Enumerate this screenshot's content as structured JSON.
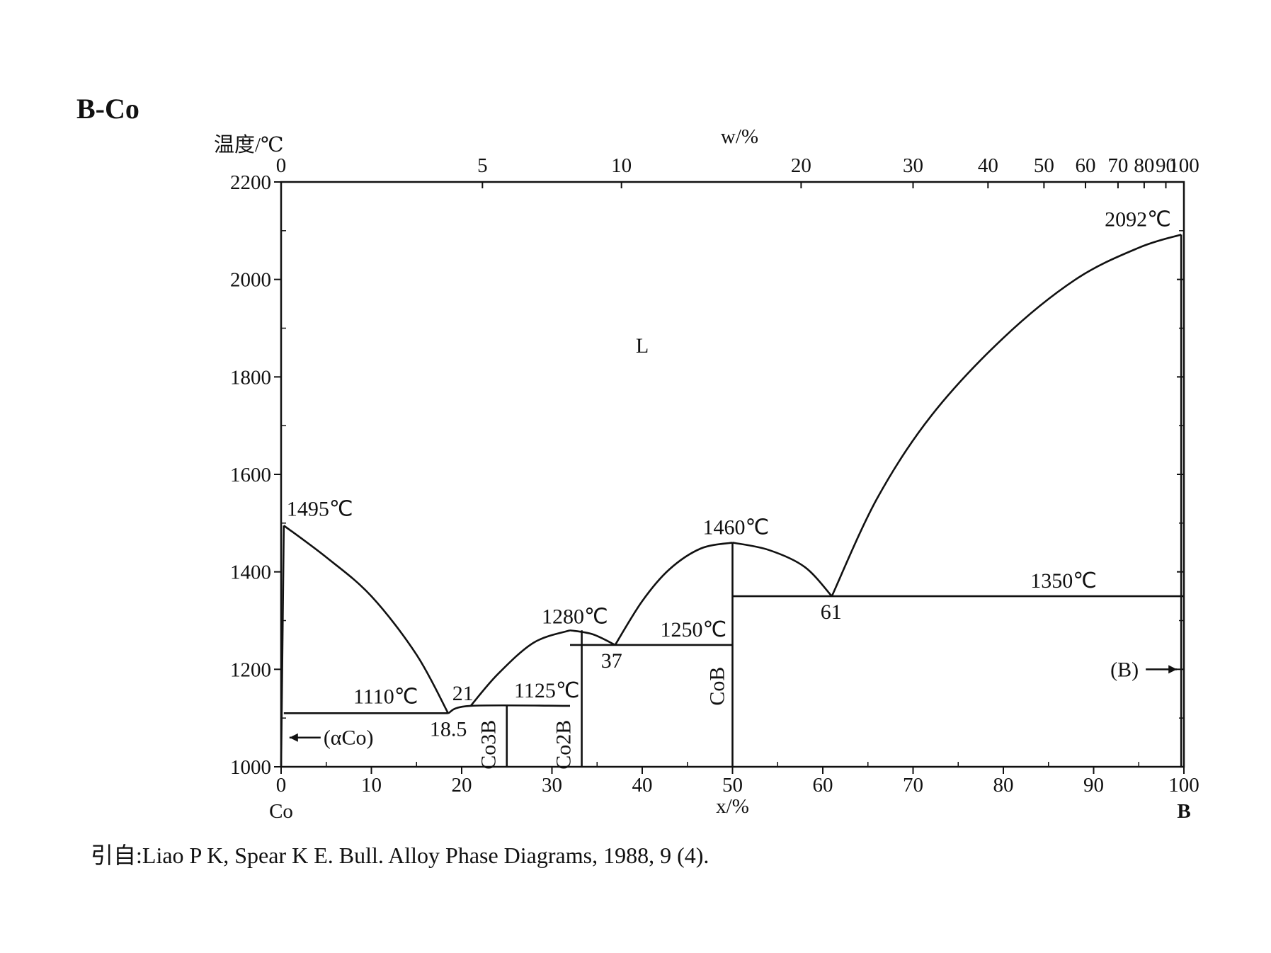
{
  "page": {
    "title": "B-Co",
    "citation": "引自:Liao P K, Spear K E. Bull. Alloy Phase Diagrams, 1988, 9 (4)."
  },
  "chart_data": {
    "type": "line",
    "title": "B-Co",
    "ylabel": "温度/℃",
    "xlabel": "x/%",
    "top_axis_label": "w/%",
    "xlim": [
      0,
      100
    ],
    "ylim": [
      1000,
      2200
    ],
    "x_ticks": [
      0,
      10,
      20,
      30,
      40,
      50,
      60,
      70,
      80,
      90,
      100
    ],
    "y_ticks": [
      1000,
      1200,
      1400,
      1600,
      1800,
      2000,
      2200
    ],
    "top_ticks": [
      {
        "w": 0,
        "x": 0
      },
      {
        "w": 5,
        "x": 22.3
      },
      {
        "w": 10,
        "x": 37.7
      },
      {
        "w": 20,
        "x": 57.6
      },
      {
        "w": 30,
        "x": 70
      },
      {
        "w": 40,
        "x": 78.3
      },
      {
        "w": 50,
        "x": 84.5
      },
      {
        "w": 60,
        "x": 89.1
      },
      {
        "w": 70,
        "x": 92.7
      },
      {
        "w": 80,
        "x": 95.6
      },
      {
        "w": 90,
        "x": 98
      },
      {
        "w": 100,
        "x": 100
      }
    ],
    "x_end_labels": {
      "left": "Co",
      "right": "B"
    },
    "series": [
      {
        "name": "liquidus (αCo side)",
        "points": [
          [
            0.3,
            1495
          ],
          [
            5,
            1430
          ],
          [
            10,
            1350
          ],
          [
            15,
            1230
          ],
          [
            18.5,
            1110
          ]
        ]
      },
      {
        "name": "liquidus Co2B rise",
        "points": [
          [
            21,
            1125
          ],
          [
            24,
            1190
          ],
          [
            28,
            1255
          ],
          [
            32,
            1280
          ]
        ]
      },
      {
        "name": "liquidus Co2B fall",
        "points": [
          [
            32,
            1280
          ],
          [
            34.5,
            1272
          ],
          [
            37,
            1250
          ]
        ]
      },
      {
        "name": "liquidus CoB rise",
        "points": [
          [
            37,
            1250
          ],
          [
            40,
            1340
          ],
          [
            43,
            1405
          ],
          [
            46.5,
            1448
          ],
          [
            50,
            1460
          ]
        ]
      },
      {
        "name": "liquidus CoB fall",
        "points": [
          [
            50,
            1460
          ],
          [
            54,
            1445
          ],
          [
            58,
            1410
          ],
          [
            61,
            1350
          ]
        ]
      },
      {
        "name": "liquidus B side",
        "points": [
          [
            61,
            1350
          ],
          [
            66,
            1550
          ],
          [
            72,
            1720
          ],
          [
            80,
            1880
          ],
          [
            88,
            2000
          ],
          [
            95,
            2065
          ],
          [
            99.7,
            2092
          ]
        ]
      },
      {
        "name": "eutectic 1110",
        "points": [
          [
            0.3,
            1110
          ],
          [
            18.5,
            1110
          ]
        ]
      },
      {
        "name": "peritectic 1125",
        "points": [
          [
            18.5,
            1110
          ],
          [
            21,
            1125
          ],
          [
            32,
            1125
          ]
        ]
      },
      {
        "name": "eutectic 1250",
        "points": [
          [
            32,
            1250
          ],
          [
            50,
            1250
          ]
        ]
      },
      {
        "name": "eutectic 1350",
        "points": [
          [
            50,
            1350
          ],
          [
            100,
            1350
          ]
        ]
      },
      {
        "name": "Co3B line",
        "points": [
          [
            25,
            1000
          ],
          [
            25,
            1125
          ]
        ]
      },
      {
        "name": "Co2B line",
        "points": [
          [
            33.3,
            1000
          ],
          [
            33.3,
            1280
          ]
        ]
      },
      {
        "name": "CoB line",
        "points": [
          [
            50,
            1000
          ],
          [
            50,
            1460
          ]
        ]
      },
      {
        "name": "αCo solvus",
        "points": [
          [
            0,
            1000
          ],
          [
            0.3,
            1495
          ]
        ]
      },
      {
        "name": "B line",
        "points": [
          [
            99.7,
            1000
          ],
          [
            99.7,
            2092
          ]
        ]
      }
    ],
    "annotations": [
      {
        "text": "1495℃",
        "x": 0.3,
        "y": 1495
      },
      {
        "text": "1110℃",
        "x": 8,
        "y": 1110
      },
      {
        "text": "18.5",
        "x": 18.5,
        "y": 1110
      },
      {
        "text": "21",
        "x": 21,
        "y": 1125
      },
      {
        "text": "1125℃",
        "x": 28,
        "y": 1125
      },
      {
        "text": "1280℃",
        "x": 32,
        "y": 1280
      },
      {
        "text": "37",
        "x": 37,
        "y": 1250
      },
      {
        "text": "1250℃",
        "x": 42,
        "y": 1250
      },
      {
        "text": "1460℃",
        "x": 50,
        "y": 1460
      },
      {
        "text": "61",
        "x": 61,
        "y": 1350
      },
      {
        "text": "1350℃",
        "x": 83,
        "y": 1350
      },
      {
        "text": "2092℃",
        "x": 99.7,
        "y": 2092
      },
      {
        "text": "L",
        "x": 40,
        "y": 1850
      },
      {
        "text": "(αCo)",
        "x": 0.3,
        "y": 1060
      },
      {
        "text": "(B)",
        "x": 99.7,
        "y": 1200
      },
      {
        "text": "CoB",
        "x": 50,
        "y": 1180
      },
      {
        "text": "Co3B",
        "x": 25,
        "y": 1060
      },
      {
        "text": "Co2B",
        "x": 33.3,
        "y": 1060
      }
    ]
  }
}
